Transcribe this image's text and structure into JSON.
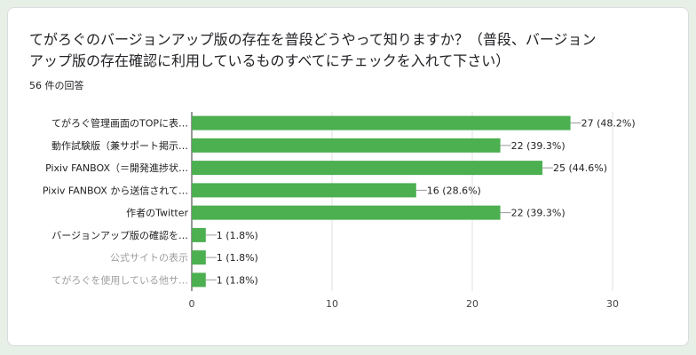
{
  "question": {
    "title": "てがろぐのバージョンアップ版の存在を普段どうやって知りますか？（普段、バージョンアップ版の存在確認に利用しているものすべてにチェックを入れて下さい）",
    "response_count": "56 件の回答"
  },
  "colors": {
    "bar": "#4caf50",
    "label_dark": "#222222",
    "label_muted": "#9e9e9e"
  },
  "chart_data": {
    "type": "bar",
    "orientation": "horizontal",
    "categories": [
      "てがろぐ管理画面のTOPに表…",
      "動作試験版（兼サポート掲示…",
      "Pixiv FANBOX（＝開発進捗状…",
      "Pixiv FANBOX から送信されて…",
      "作者のTwitter",
      "バージョンアップ版の確認を…",
      "公式サイトの表示",
      "てがろぐを使用している他サ…"
    ],
    "category_muted": [
      false,
      false,
      false,
      false,
      false,
      false,
      true,
      true
    ],
    "values": [
      27,
      22,
      25,
      16,
      22,
      1,
      1,
      1
    ],
    "value_labels": [
      "27 (48.2%)",
      "22 (39.3%)",
      "25 (44.6%)",
      "16 (28.6%)",
      "22 (39.3%)",
      "1 (1.8%)",
      "1 (1.8%)",
      "1 (1.8%)"
    ],
    "xlim": [
      0,
      30
    ],
    "xticks": [
      "0",
      "10",
      "20",
      "30"
    ],
    "grid": true
  }
}
